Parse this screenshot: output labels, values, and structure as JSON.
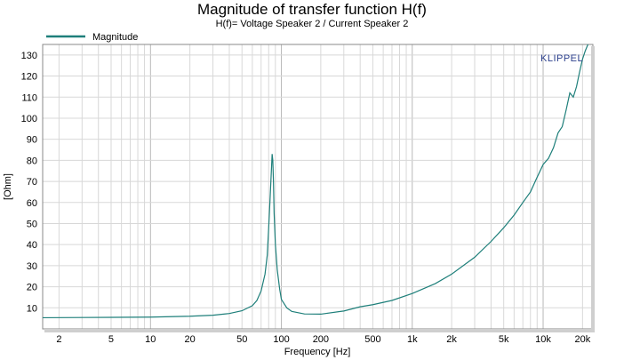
{
  "chart_data": {
    "type": "line",
    "title": "Magnitude of transfer function H(f)",
    "subtitle": "H(f)= Voltage Speaker 2 / Current Speaker 2",
    "xlabel": "Frequency [Hz]",
    "ylabel": "[Ohm]",
    "x_scale": "log",
    "xlim": [
      1.5,
      24000
    ],
    "ylim": [
      0,
      135
    ],
    "grid": true,
    "legend_position": "top-left",
    "brand_label": "KLIPPEL",
    "x_ticks": [
      {
        "value": 2,
        "label": "2"
      },
      {
        "value": 5,
        "label": "5"
      },
      {
        "value": 10,
        "label": "10"
      },
      {
        "value": 20,
        "label": "20"
      },
      {
        "value": 50,
        "label": "50"
      },
      {
        "value": 100,
        "label": "100"
      },
      {
        "value": 200,
        "label": "200"
      },
      {
        "value": 500,
        "label": "500"
      },
      {
        "value": 1000,
        "label": "1k"
      },
      {
        "value": 2000,
        "label": "2k"
      },
      {
        "value": 5000,
        "label": "5k"
      },
      {
        "value": 10000,
        "label": "10k"
      },
      {
        "value": 20000,
        "label": "20k"
      }
    ],
    "y_ticks": [
      {
        "value": 10,
        "label": "10"
      },
      {
        "value": 20,
        "label": "20"
      },
      {
        "value": 30,
        "label": "30"
      },
      {
        "value": 40,
        "label": "40"
      },
      {
        "value": 50,
        "label": "50"
      },
      {
        "value": 60,
        "label": "60"
      },
      {
        "value": 70,
        "label": "70"
      },
      {
        "value": 80,
        "label": "80"
      },
      {
        "value": 90,
        "label": "90"
      },
      {
        "value": 100,
        "label": "100"
      },
      {
        "value": 110,
        "label": "110"
      },
      {
        "value": 120,
        "label": "120"
      },
      {
        "value": 130,
        "label": "130"
      }
    ],
    "series": [
      {
        "name": "Magnitude",
        "color": "#1e7f7a",
        "points": [
          [
            1.5,
            5.3
          ],
          [
            3,
            5.4
          ],
          [
            10,
            5.6
          ],
          [
            20,
            6.0
          ],
          [
            30,
            6.5
          ],
          [
            40,
            7.3
          ],
          [
            50,
            8.6
          ],
          [
            60,
            11.0
          ],
          [
            65,
            13.5
          ],
          [
            70,
            18.0
          ],
          [
            75,
            26.0
          ],
          [
            78,
            35.0
          ],
          [
            80,
            48.0
          ],
          [
            82,
            62.0
          ],
          [
            84,
            76.0
          ],
          [
            85,
            83.0
          ],
          [
            86,
            80.0
          ],
          [
            87,
            70.0
          ],
          [
            88,
            55.0
          ],
          [
            90,
            40.0
          ],
          [
            93,
            28.0
          ],
          [
            97,
            19.0
          ],
          [
            100,
            14.0
          ],
          [
            110,
            10.0
          ],
          [
            120,
            8.3
          ],
          [
            150,
            7.1
          ],
          [
            200,
            7.0
          ],
          [
            300,
            8.5
          ],
          [
            400,
            10.5
          ],
          [
            500,
            11.5
          ],
          [
            700,
            13.5
          ],
          [
            1000,
            16.8
          ],
          [
            1500,
            21.5
          ],
          [
            2000,
            26.0
          ],
          [
            3000,
            34.0
          ],
          [
            4000,
            41.5
          ],
          [
            5000,
            48.0
          ],
          [
            6000,
            54.0
          ],
          [
            7000,
            60.0
          ],
          [
            8000,
            65.0
          ],
          [
            9000,
            72.0
          ],
          [
            10000,
            78.0
          ],
          [
            11000,
            81.0
          ],
          [
            12000,
            86.0
          ],
          [
            13000,
            93.0
          ],
          [
            14000,
            96.0
          ],
          [
            15000,
            104.0
          ],
          [
            16000,
            112.0
          ],
          [
            17000,
            110.0
          ],
          [
            18000,
            115.0
          ],
          [
            19000,
            122.0
          ],
          [
            20000,
            128.0
          ],
          [
            21000,
            132.0
          ],
          [
            22000,
            135.0
          ]
        ]
      }
    ]
  }
}
